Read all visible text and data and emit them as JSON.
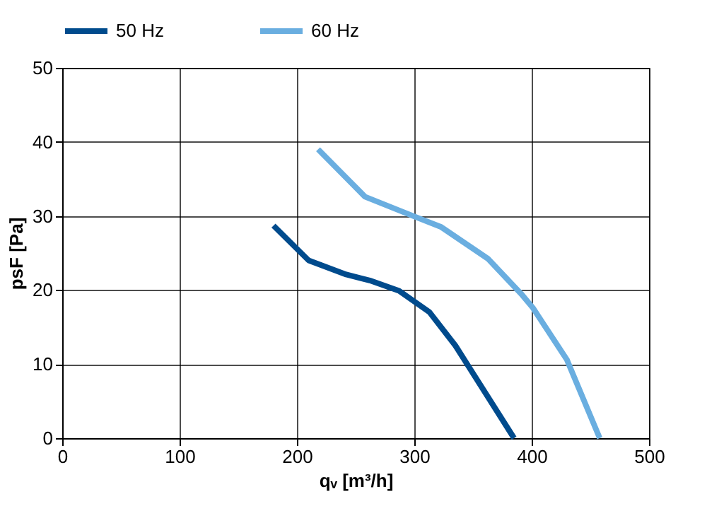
{
  "chart_data": {
    "type": "line",
    "xlabel": "qᵥ [m³/h]",
    "ylabel": "psF [Pa]",
    "xlim": [
      0,
      500
    ],
    "xticks": [
      0,
      100,
      200,
      300,
      400,
      500
    ],
    "ylim": [
      0,
      50
    ],
    "yticks": [
      0,
      10,
      20,
      30,
      40,
      50
    ],
    "grid": true,
    "legend": "top",
    "marker": "none",
    "line_style": "solid",
    "series": [
      {
        "name": "50 Hz",
        "color": "#004b8d",
        "x": [
          180,
          210,
          242,
          262,
          287,
          313,
          335,
          385
        ],
        "values": [
          28.7,
          24.0,
          22.1,
          21.3,
          19.9,
          17.0,
          12.5,
          0
        ]
      },
      {
        "name": "60 Hz",
        "color": "#6aaee0",
        "x": [
          218,
          258,
          299,
          323,
          363,
          391,
          401,
          430,
          458
        ],
        "values": [
          39.0,
          32.6,
          30.0,
          28.5,
          24.2,
          19.5,
          17.6,
          10.6,
          0
        ]
      }
    ]
  }
}
